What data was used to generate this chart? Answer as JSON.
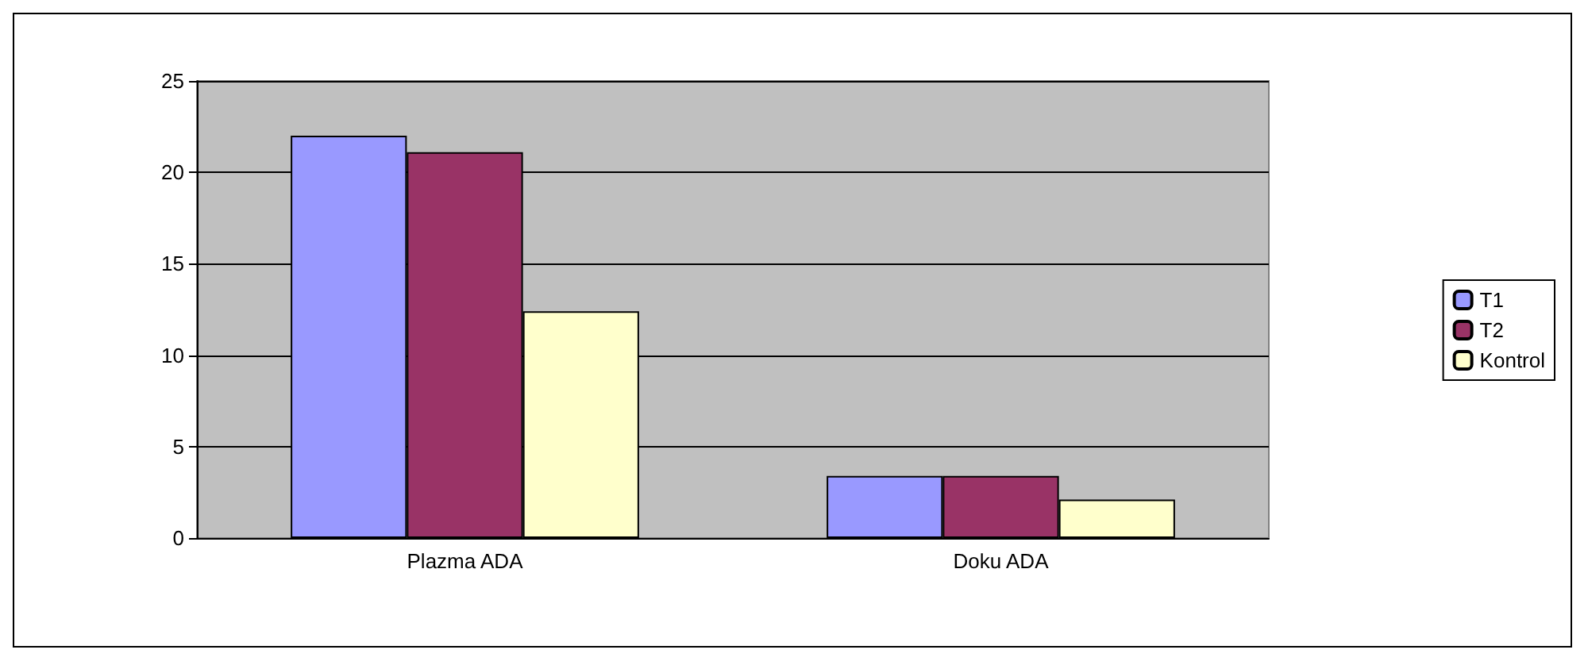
{
  "chart_data": {
    "type": "bar",
    "categories": [
      "Plazma ADA",
      "Doku ADA"
    ],
    "series": [
      {
        "name": "T1",
        "color": "#9999ff",
        "values": [
          22,
          3.4
        ]
      },
      {
        "name": "T2",
        "color": "#993366",
        "values": [
          21.1,
          3.4
        ]
      },
      {
        "name": "Kontrol",
        "color": "#ffffcc",
        "values": [
          12.4,
          2.1
        ]
      }
    ],
    "ylim": [
      0,
      25
    ],
    "yticks": [
      0,
      5,
      10,
      15,
      20,
      25
    ],
    "grid": "y",
    "legend": "right"
  }
}
